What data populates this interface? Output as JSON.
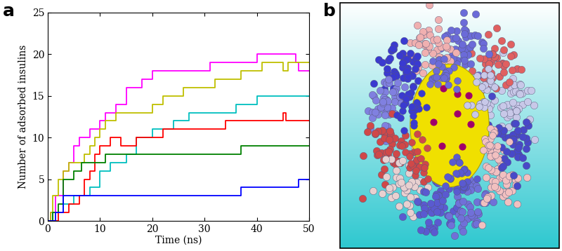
{
  "panel_labels": [
    "a",
    "b"
  ],
  "chart_data": {
    "type": "line",
    "line_style": "steps",
    "x_label": "Time (ns)",
    "y_label": "Number of adsorbed insulins",
    "xlim": [
      0,
      50
    ],
    "xticks": [
      0,
      10,
      20,
      30,
      40,
      50
    ],
    "ylim": [
      0,
      25
    ],
    "yticks": [
      0,
      5,
      10,
      15,
      20,
      25
    ],
    "series": [
      {
        "color": "#ff00ff",
        "x": [
          0,
          0.5,
          1.5,
          3,
          4,
          5,
          6,
          8,
          10,
          11,
          13,
          15,
          18,
          20,
          31,
          40,
          47.5,
          48,
          50
        ],
        "values": [
          0,
          1,
          3,
          6,
          7,
          9,
          10,
          11,
          12,
          13,
          14,
          16,
          17,
          18,
          19,
          20,
          19,
          18,
          18
        ]
      },
      {
        "color": "#bfbf00",
        "x": [
          0,
          0.5,
          1,
          2,
          3,
          4,
          7,
          8,
          9,
          10,
          11,
          13,
          20,
          22,
          26,
          32,
          37,
          41,
          45,
          46,
          50
        ],
        "values": [
          0,
          1,
          3,
          5,
          6,
          7,
          8,
          9,
          10,
          11,
          12,
          13,
          14,
          15,
          16,
          17,
          18,
          19,
          18,
          19,
          19
        ]
      },
      {
        "color": "#00bfbf",
        "x": [
          0,
          1,
          3,
          5,
          8,
          10,
          12,
          15,
          17,
          20,
          24,
          27,
          36,
          40,
          50
        ],
        "values": [
          0,
          1,
          2,
          3,
          4,
          6,
          7,
          8,
          10,
          11,
          12,
          13,
          14,
          15,
          15
        ]
      },
      {
        "color": "#ff0000",
        "x": [
          0,
          2,
          4,
          6,
          7,
          8,
          9,
          10,
          12,
          14,
          17,
          22,
          34,
          45,
          45.5,
          50
        ],
        "values": [
          0,
          1,
          2,
          3,
          5,
          6,
          8,
          9,
          10,
          9,
          10,
          11,
          12,
          13,
          12,
          12
        ]
      },
      {
        "color": "#008000",
        "x": [
          0,
          1,
          2,
          3,
          5,
          6.5,
          11,
          37,
          50
        ],
        "values": [
          0,
          1,
          2,
          5,
          6,
          7,
          8,
          9,
          9
        ]
      },
      {
        "color": "#0000ff",
        "x": [
          0,
          1.5,
          3,
          37,
          48,
          50
        ],
        "values": [
          0,
          1,
          3,
          4,
          5,
          5
        ]
      }
    ]
  }
}
